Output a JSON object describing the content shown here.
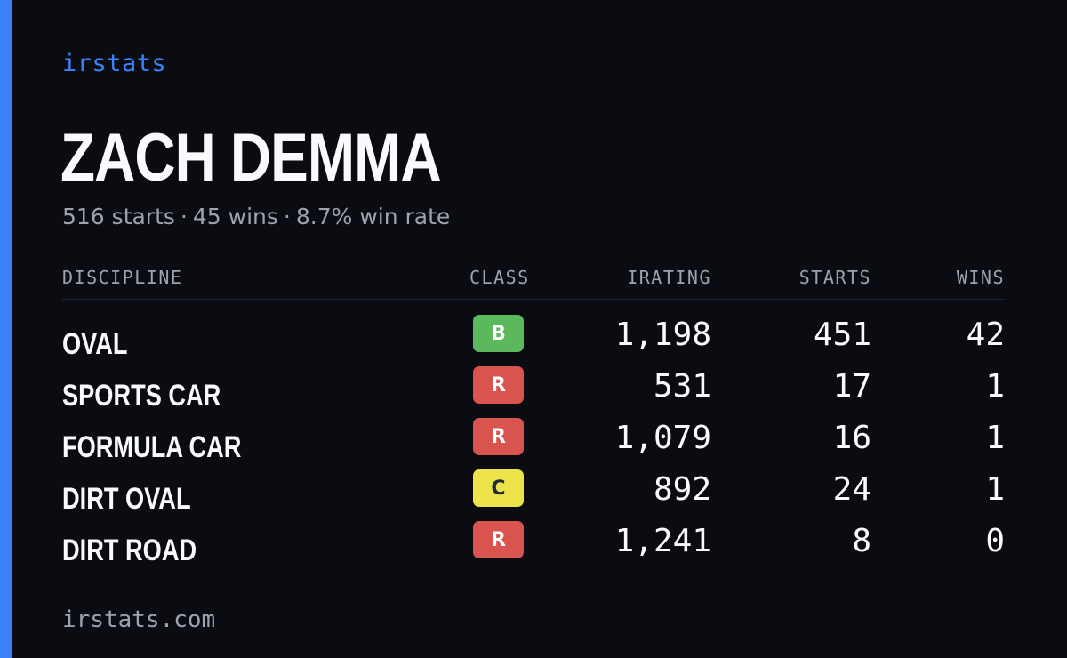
{
  "brand": "irstats",
  "player": {
    "name": "ZACH DEMMA",
    "starts": "516 starts",
    "wins": "45 wins",
    "win_rate": "8.7% win rate",
    "separator": "·"
  },
  "table": {
    "headers": {
      "discipline": "DISCIPLINE",
      "class": "CLASS",
      "irating": "IRATING",
      "starts": "STARTS",
      "wins": "WINS"
    },
    "rows": [
      {
        "discipline": "OVAL",
        "class": "B",
        "class_bg": "#5cb85c",
        "class_fg": "#ffffff",
        "irating": "1,198",
        "starts": "451",
        "wins": "42"
      },
      {
        "discipline": "SPORTS CAR",
        "class": "R",
        "class_bg": "#d9534f",
        "class_fg": "#ffffff",
        "irating": "531",
        "starts": "17",
        "wins": "1"
      },
      {
        "discipline": "FORMULA CAR",
        "class": "R",
        "class_bg": "#d9534f",
        "class_fg": "#ffffff",
        "irating": "1,079",
        "starts": "16",
        "wins": "1"
      },
      {
        "discipline": "DIRT OVAL",
        "class": "C",
        "class_bg": "#ece34a",
        "class_fg": "#1f2937",
        "irating": "892",
        "starts": "24",
        "wins": "1"
      },
      {
        "discipline": "DIRT ROAD",
        "class": "R",
        "class_bg": "#d9534f",
        "class_fg": "#ffffff",
        "irating": "1,241",
        "starts": "8",
        "wins": "0"
      }
    ]
  },
  "footer": "irstats.com",
  "colors": {
    "background": "#0a0c12",
    "accent": "#3b82f6",
    "text": "#f8fafc",
    "muted": "#9ca3af"
  }
}
